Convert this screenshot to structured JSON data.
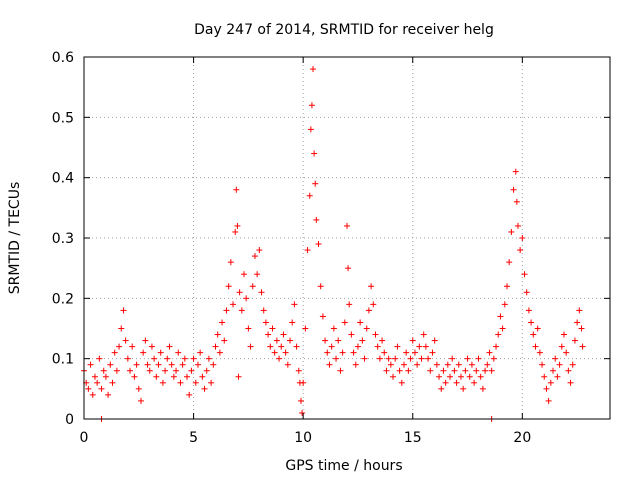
{
  "chart_data": {
    "type": "scatter",
    "title": "Day 247 of 2014, SRMTID for receiver helg",
    "xlabel": "GPS time / hours",
    "ylabel": "SRMTID / TECUs",
    "xlim": [
      0,
      24
    ],
    "ylim": [
      0,
      0.6
    ],
    "xticks": [
      "0",
      "5",
      "10",
      "15",
      "20"
    ],
    "yticks": [
      "0",
      "0.1",
      "0.2",
      "0.3",
      "0.4",
      "0.5",
      "0.6"
    ],
    "marker": "+",
    "series_color": "#ff0000",
    "grid": true,
    "series": [
      {
        "name": "SRMTID",
        "points": [
          [
            0.0,
            0.08
          ],
          [
            0.1,
            0.06
          ],
          [
            0.2,
            0.05
          ],
          [
            0.3,
            0.09
          ],
          [
            0.4,
            0.04
          ],
          [
            0.5,
            0.07
          ],
          [
            0.6,
            0.06
          ],
          [
            0.7,
            0.1
          ],
          [
            0.8,
            0.05
          ],
          [
            0.9,
            0.08
          ],
          [
            1.0,
            0.07
          ],
          [
            1.1,
            0.04
          ],
          [
            1.2,
            0.09
          ],
          [
            1.3,
            0.06
          ],
          [
            1.4,
            0.11
          ],
          [
            1.5,
            0.08
          ],
          [
            1.6,
            0.12
          ],
          [
            1.7,
            0.15
          ],
          [
            1.8,
            0.18
          ],
          [
            1.9,
            0.13
          ],
          [
            2.0,
            0.1
          ],
          [
            2.1,
            0.08
          ],
          [
            2.2,
            0.12
          ],
          [
            2.3,
            0.07
          ],
          [
            2.4,
            0.09
          ],
          [
            2.5,
            0.05
          ],
          [
            2.6,
            0.03
          ],
          [
            2.7,
            0.11
          ],
          [
            2.8,
            0.13
          ],
          [
            2.9,
            0.09
          ],
          [
            3.0,
            0.08
          ],
          [
            3.1,
            0.12
          ],
          [
            3.2,
            0.1
          ],
          [
            3.3,
            0.07
          ],
          [
            3.4,
            0.09
          ],
          [
            3.5,
            0.11
          ],
          [
            3.6,
            0.06
          ],
          [
            3.7,
            0.08
          ],
          [
            3.8,
            0.1
          ],
          [
            3.9,
            0.12
          ],
          [
            4.0,
            0.09
          ],
          [
            4.1,
            0.07
          ],
          [
            4.2,
            0.08
          ],
          [
            4.3,
            0.11
          ],
          [
            4.4,
            0.06
          ],
          [
            4.5,
            0.09
          ],
          [
            4.6,
            0.1
          ],
          [
            4.7,
            0.07
          ],
          [
            4.8,
            0.04
          ],
          [
            4.9,
            0.08
          ],
          [
            5.0,
            0.1
          ],
          [
            5.1,
            0.06
          ],
          [
            5.2,
            0.09
          ],
          [
            5.3,
            0.11
          ],
          [
            5.4,
            0.07
          ],
          [
            5.5,
            0.05
          ],
          [
            5.6,
            0.08
          ],
          [
            5.7,
            0.1
          ],
          [
            5.8,
            0.06
          ],
          [
            5.9,
            0.09
          ],
          [
            6.0,
            0.12
          ],
          [
            6.1,
            0.14
          ],
          [
            6.2,
            0.11
          ],
          [
            6.3,
            0.16
          ],
          [
            6.4,
            0.13
          ],
          [
            6.5,
            0.18
          ],
          [
            6.6,
            0.22
          ],
          [
            6.7,
            0.26
          ],
          [
            6.8,
            0.19
          ],
          [
            6.9,
            0.31
          ],
          [
            6.95,
            0.38
          ],
          [
            7.0,
            0.32
          ],
          [
            7.05,
            0.07
          ],
          [
            7.1,
            0.21
          ],
          [
            7.2,
            0.18
          ],
          [
            7.3,
            0.24
          ],
          [
            7.4,
            0.2
          ],
          [
            7.5,
            0.15
          ],
          [
            7.6,
            0.12
          ],
          [
            7.7,
            0.22
          ],
          [
            7.8,
            0.27
          ],
          [
            7.9,
            0.24
          ],
          [
            8.0,
            0.28
          ],
          [
            8.1,
            0.21
          ],
          [
            8.2,
            0.18
          ],
          [
            8.3,
            0.16
          ],
          [
            8.4,
            0.14
          ],
          [
            8.5,
            0.12
          ],
          [
            8.6,
            0.15
          ],
          [
            8.7,
            0.11
          ],
          [
            8.8,
            0.13
          ],
          [
            8.9,
            0.1
          ],
          [
            9.0,
            0.12
          ],
          [
            9.1,
            0.14
          ],
          [
            9.2,
            0.11
          ],
          [
            9.3,
            0.09
          ],
          [
            9.4,
            0.13
          ],
          [
            9.5,
            0.16
          ],
          [
            9.6,
            0.19
          ],
          [
            9.7,
            0.12
          ],
          [
            9.8,
            0.08
          ],
          [
            9.85,
            0.06
          ],
          [
            9.9,
            0.03
          ],
          [
            9.95,
            0.01
          ],
          [
            10.0,
            0.06
          ],
          [
            10.1,
            0.15
          ],
          [
            10.2,
            0.28
          ],
          [
            10.3,
            0.37
          ],
          [
            10.35,
            0.48
          ],
          [
            10.4,
            0.52
          ],
          [
            10.45,
            0.58
          ],
          [
            10.5,
            0.44
          ],
          [
            10.55,
            0.39
          ],
          [
            10.6,
            0.33
          ],
          [
            10.7,
            0.29
          ],
          [
            10.8,
            0.22
          ],
          [
            10.9,
            0.17
          ],
          [
            11.0,
            0.13
          ],
          [
            11.1,
            0.11
          ],
          [
            11.2,
            0.09
          ],
          [
            11.3,
            0.12
          ],
          [
            11.4,
            0.15
          ],
          [
            11.5,
            0.1
          ],
          [
            11.6,
            0.13
          ],
          [
            11.7,
            0.08
          ],
          [
            11.8,
            0.11
          ],
          [
            11.9,
            0.16
          ],
          [
            12.0,
            0.32
          ],
          [
            12.05,
            0.25
          ],
          [
            12.1,
            0.19
          ],
          [
            12.2,
            0.14
          ],
          [
            12.3,
            0.11
          ],
          [
            12.4,
            0.09
          ],
          [
            12.5,
            0.12
          ],
          [
            12.6,
            0.16
          ],
          [
            12.7,
            0.13
          ],
          [
            12.8,
            0.1
          ],
          [
            12.9,
            0.15
          ],
          [
            13.0,
            0.18
          ],
          [
            13.1,
            0.22
          ],
          [
            13.2,
            0.19
          ],
          [
            13.3,
            0.14
          ],
          [
            13.4,
            0.12
          ],
          [
            13.5,
            0.1
          ],
          [
            13.6,
            0.13
          ],
          [
            13.7,
            0.11
          ],
          [
            13.8,
            0.08
          ],
          [
            13.9,
            0.1
          ],
          [
            14.0,
            0.09
          ],
          [
            14.1,
            0.07
          ],
          [
            14.2,
            0.1
          ],
          [
            14.3,
            0.12
          ],
          [
            14.4,
            0.08
          ],
          [
            14.5,
            0.06
          ],
          [
            14.6,
            0.09
          ],
          [
            14.7,
            0.11
          ],
          [
            14.8,
            0.08
          ],
          [
            14.9,
            0.1
          ],
          [
            15.0,
            0.13
          ],
          [
            15.1,
            0.11
          ],
          [
            15.2,
            0.09
          ],
          [
            15.3,
            0.12
          ],
          [
            15.4,
            0.1
          ],
          [
            15.5,
            0.14
          ],
          [
            15.6,
            0.12
          ],
          [
            15.7,
            0.1
          ],
          [
            15.8,
            0.08
          ],
          [
            15.9,
            0.11
          ],
          [
            16.0,
            0.13
          ],
          [
            16.1,
            0.09
          ],
          [
            16.2,
            0.07
          ],
          [
            16.3,
            0.05
          ],
          [
            16.4,
            0.08
          ],
          [
            16.5,
            0.06
          ],
          [
            16.6,
            0.09
          ],
          [
            16.7,
            0.07
          ],
          [
            16.8,
            0.1
          ],
          [
            16.9,
            0.08
          ],
          [
            17.0,
            0.06
          ],
          [
            17.1,
            0.09
          ],
          [
            17.2,
            0.07
          ],
          [
            17.3,
            0.05
          ],
          [
            17.4,
            0.08
          ],
          [
            17.5,
            0.1
          ],
          [
            17.6,
            0.07
          ],
          [
            17.7,
            0.09
          ],
          [
            17.8,
            0.06
          ],
          [
            17.9,
            0.08
          ],
          [
            18.0,
            0.1
          ],
          [
            18.1,
            0.07
          ],
          [
            18.2,
            0.05
          ],
          [
            18.3,
            0.08
          ],
          [
            18.4,
            0.09
          ],
          [
            18.5,
            0.11
          ],
          [
            18.6,
            0.08
          ],
          [
            18.7,
            0.1
          ],
          [
            18.8,
            0.12
          ],
          [
            18.9,
            0.14
          ],
          [
            19.0,
            0.17
          ],
          [
            19.1,
            0.15
          ],
          [
            19.2,
            0.19
          ],
          [
            19.3,
            0.22
          ],
          [
            19.4,
            0.26
          ],
          [
            19.5,
            0.31
          ],
          [
            19.6,
            0.38
          ],
          [
            19.7,
            0.41
          ],
          [
            19.75,
            0.36
          ],
          [
            19.8,
            0.32
          ],
          [
            19.9,
            0.28
          ],
          [
            20.0,
            0.3
          ],
          [
            20.1,
            0.24
          ],
          [
            20.2,
            0.21
          ],
          [
            20.3,
            0.18
          ],
          [
            20.4,
            0.16
          ],
          [
            20.5,
            0.14
          ],
          [
            20.6,
            0.12
          ],
          [
            20.7,
            0.15
          ],
          [
            20.8,
            0.11
          ],
          [
            20.9,
            0.09
          ],
          [
            21.0,
            0.07
          ],
          [
            21.1,
            0.05
          ],
          [
            21.2,
            0.03
          ],
          [
            21.3,
            0.06
          ],
          [
            21.4,
            0.08
          ],
          [
            21.5,
            0.1
          ],
          [
            21.6,
            0.07
          ],
          [
            21.7,
            0.09
          ],
          [
            21.8,
            0.12
          ],
          [
            21.9,
            0.14
          ],
          [
            22.0,
            0.11
          ],
          [
            22.1,
            0.08
          ],
          [
            22.2,
            0.06
          ],
          [
            22.3,
            0.09
          ],
          [
            22.4,
            0.13
          ],
          [
            22.5,
            0.16
          ],
          [
            22.6,
            0.18
          ],
          [
            22.7,
            0.15
          ],
          [
            22.75,
            0.12
          ],
          [
            0.8,
            0.0
          ],
          [
            18.6,
            0.0
          ]
        ]
      }
    ]
  }
}
